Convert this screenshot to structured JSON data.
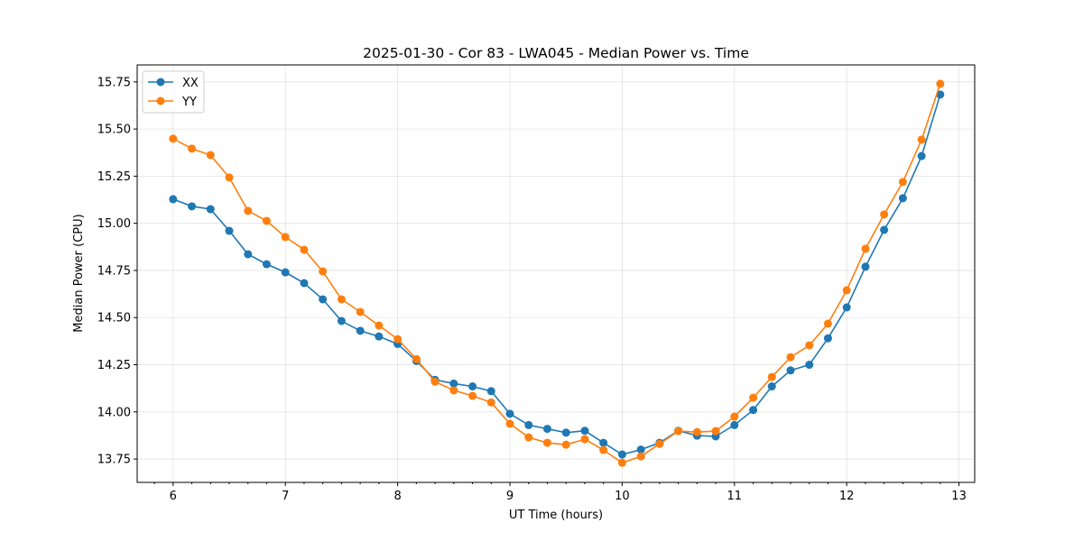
{
  "chart_data": {
    "type": "line",
    "title": "2025-01-30 - Cor 83 - LWA045 - Median Power vs. Time",
    "xlabel": "UT Time (hours)",
    "ylabel": "Median Power (CPU)",
    "xlim": [
      5.68,
      13.14
    ],
    "ylim": [
      13.626,
      15.84
    ],
    "xticks": [
      6,
      7,
      8,
      9,
      10,
      11,
      12,
      13
    ],
    "xtick_labels": [
      "6",
      "7",
      "8",
      "9",
      "10",
      "11",
      "12",
      "13"
    ],
    "yticks": [
      13.75,
      14.0,
      14.25,
      14.5,
      14.75,
      15.0,
      15.25,
      15.5,
      15.75
    ],
    "ytick_labels": [
      "13.75",
      "14.00",
      "14.25",
      "14.50",
      "14.75",
      "15.00",
      "15.25",
      "15.50",
      "15.75"
    ],
    "grid": true,
    "legend": "top-left",
    "x": [
      6.0,
      6.167,
      6.333,
      6.5,
      6.667,
      6.833,
      7.0,
      7.167,
      7.333,
      7.5,
      7.667,
      7.833,
      8.0,
      8.167,
      8.333,
      8.5,
      8.667,
      8.833,
      9.0,
      9.167,
      9.333,
      9.5,
      9.667,
      9.833,
      10.0,
      10.167,
      10.333,
      10.5,
      10.667,
      10.833,
      11.0,
      11.167,
      11.333,
      11.5,
      11.667,
      11.833,
      12.0,
      12.167,
      12.333,
      12.5,
      12.667,
      12.833
    ],
    "series": [
      {
        "name": "XX",
        "color": "#1f77b4",
        "values": [
          15.128,
          15.09,
          15.075,
          14.96,
          14.836,
          14.783,
          14.74,
          14.683,
          14.597,
          14.482,
          14.43,
          14.4,
          14.36,
          14.27,
          14.17,
          14.15,
          14.135,
          14.11,
          13.99,
          13.93,
          13.91,
          13.89,
          13.9,
          13.836,
          13.774,
          13.8,
          13.836,
          13.9,
          13.874,
          13.87,
          13.93,
          14.01,
          14.135,
          14.22,
          14.25,
          14.39,
          14.554,
          14.77,
          14.965,
          15.133,
          15.357,
          15.683
        ]
      },
      {
        "name": "YY",
        "color": "#ff7f0e",
        "values": [
          15.449,
          15.396,
          15.362,
          15.243,
          15.066,
          15.013,
          14.927,
          14.86,
          14.745,
          14.597,
          14.53,
          14.458,
          14.386,
          14.28,
          14.16,
          14.114,
          14.085,
          14.05,
          13.937,
          13.865,
          13.836,
          13.826,
          13.855,
          13.798,
          13.73,
          13.764,
          13.83,
          13.898,
          13.893,
          13.898,
          13.975,
          14.075,
          14.185,
          14.29,
          14.353,
          14.468,
          14.645,
          14.865,
          15.047,
          15.219,
          15.444,
          15.74
        ]
      }
    ]
  }
}
